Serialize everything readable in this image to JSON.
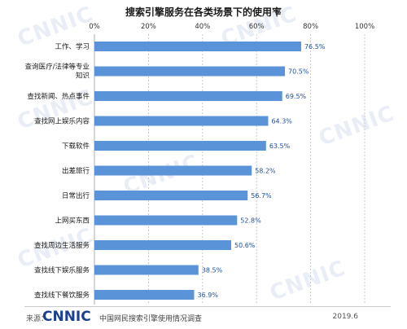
{
  "chart_data": {
    "type": "bar",
    "orientation": "horizontal",
    "title": "搜索引擎服务在各类场景下的使用率",
    "categories": [
      "工作、学习",
      "查询医疗/法律等专业知识",
      "查找新闻、热点事件",
      "查找网上娱乐内容",
      "下载软件",
      "出差旅行",
      "日常出行",
      "上网买东西",
      "查找周边生活服务",
      "查找线下娱乐服务",
      "查找线下餐饮服务"
    ],
    "category_lines": [
      [
        "工作、学习"
      ],
      [
        "查询医疗/法律等专业",
        "知识"
      ],
      [
        "查找新闻、热点事件"
      ],
      [
        "查找网上娱乐内容"
      ],
      [
        "下载软件"
      ],
      [
        "出差旅行"
      ],
      [
        "日常出行"
      ],
      [
        "上网买东西"
      ],
      [
        "查找周边生活服务"
      ],
      [
        "查找线下娱乐服务"
      ],
      [
        "查找线下餐饮服务"
      ]
    ],
    "values": [
      76.5,
      70.5,
      69.5,
      64.3,
      63.5,
      58.2,
      56.7,
      52.8,
      50.6,
      38.5,
      36.9
    ],
    "value_labels": [
      "76.5%",
      "70.5%",
      "69.5%",
      "64.3%",
      "63.5%",
      "58.2%",
      "56.7%",
      "52.8%",
      "50.6%",
      "38.5%",
      "36.9%"
    ],
    "ticks": [
      0,
      20,
      40,
      60,
      80,
      100
    ],
    "tick_labels": [
      "0%",
      "20%",
      "40%",
      "60%",
      "80%",
      "100%"
    ],
    "xlim": [
      0,
      100
    ],
    "xlabel": "",
    "ylabel": "",
    "grid": "vertical dashed",
    "bar_color": "#5b93d8",
    "label_color": "#1f4e9b"
  },
  "footer": {
    "source_prefix": "来源：",
    "logo_text": "CNNIC",
    "source_text": "中国网民搜索引擎使用情况调查",
    "date": "2019.6"
  },
  "watermark_text": "CNNIC"
}
